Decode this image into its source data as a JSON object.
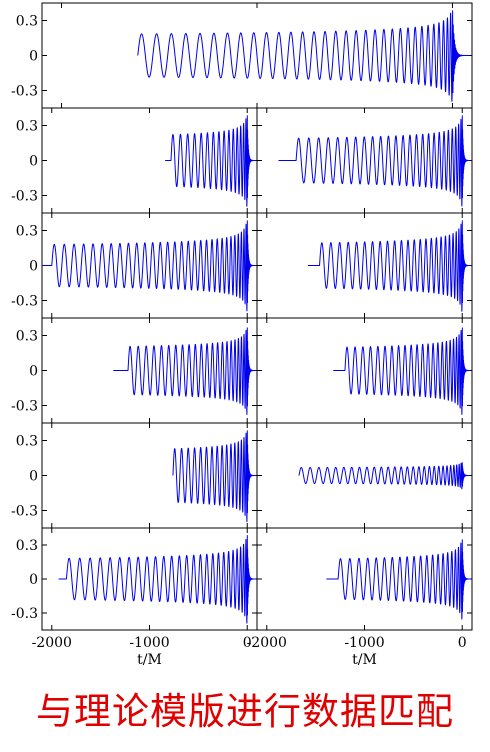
{
  "caption": "与理论模版进行数据匹配",
  "colors": {
    "waveform": "#0000ee",
    "frame": "#000000",
    "caption": "#e00000"
  },
  "chart_data": {
    "type": "line",
    "title": "",
    "xlabel": "t/M",
    "ylabel": "",
    "xlim": [
      -2100,
      100
    ],
    "ylim": [
      -0.45,
      0.45
    ],
    "x_ticks": [
      -2000,
      -1000,
      0
    ],
    "x_tick_labels": [
      "-2000",
      "-1000",
      "0"
    ],
    "y_ticks": [
      0.3,
      0,
      -0.3
    ],
    "y_tick_labels": [
      "0.3",
      "0",
      "-0.3"
    ],
    "grid": false,
    "legend": "none",
    "panels": [
      {
        "name": "row1",
        "start": -1610,
        "amp0": 0.1,
        "amp_peak": 0.42,
        "cycles": 32,
        "flat_before": 0
      },
      {
        "name": "row2-left",
        "start": -780,
        "amp0": 0.13,
        "amp_peak": 0.42,
        "cycles": 15,
        "flat_before": 60
      },
      {
        "name": "row2-right",
        "start": -1700,
        "amp0": 0.11,
        "amp_peak": 0.42,
        "cycles": 25,
        "flat_before": 180
      },
      {
        "name": "row3-left",
        "start": -2000,
        "amp0": 0.1,
        "amp_peak": 0.42,
        "cycles": 30,
        "flat_before": 100
      },
      {
        "name": "row3-right",
        "start": -1460,
        "amp0": 0.11,
        "amp_peak": 0.42,
        "cycles": 24,
        "flat_before": 120
      },
      {
        "name": "row4-left",
        "start": -1220,
        "amp0": 0.13,
        "amp_peak": 0.4,
        "cycles": 22,
        "flat_before": 150
      },
      {
        "name": "row4-right",
        "start": -1200,
        "amp0": 0.12,
        "amp_peak": 0.4,
        "cycles": 22,
        "flat_before": 120
      },
      {
        "name": "row5-left",
        "start": -760,
        "amp0": 0.14,
        "amp_peak": 0.42,
        "cycles": 16,
        "flat_before": 0
      },
      {
        "name": "row5-right",
        "start": -1670,
        "amp0": 0.05,
        "amp_peak": 0.12,
        "cycles": 28,
        "flat_before": 0
      },
      {
        "name": "row6-left",
        "start": -1850,
        "amp0": 0.1,
        "amp_peak": 0.42,
        "cycles": 26,
        "flat_before": 80
      },
      {
        "name": "row6-right",
        "start": -1270,
        "amp0": 0.1,
        "amp_peak": 0.38,
        "cycles": 20,
        "flat_before": 120
      }
    ]
  }
}
